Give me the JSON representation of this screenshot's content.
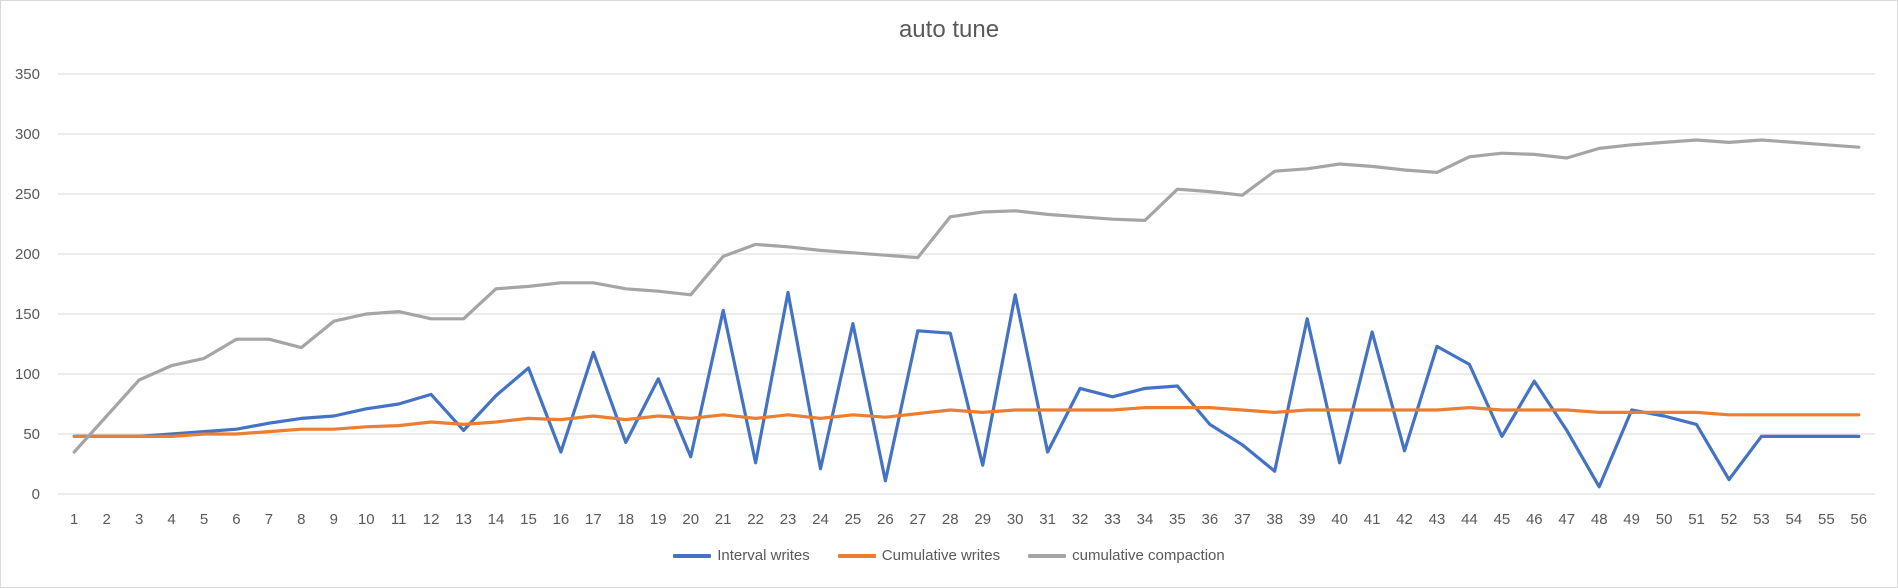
{
  "chart_data": {
    "type": "line",
    "title": "auto tune",
    "xlabel": "",
    "ylabel": "",
    "ylim": [
      0,
      350
    ],
    "yticks": [
      0,
      50,
      100,
      150,
      200,
      250,
      300,
      350
    ],
    "grid": true,
    "legend": "bottom",
    "categories": [
      "1",
      "2",
      "3",
      "4",
      "5",
      "6",
      "7",
      "8",
      "9",
      "10",
      "11",
      "12",
      "13",
      "14",
      "15",
      "16",
      "17",
      "18",
      "19",
      "20",
      "21",
      "22",
      "23",
      "24",
      "25",
      "26",
      "27",
      "28",
      "29",
      "30",
      "31",
      "32",
      "33",
      "34",
      "35",
      "36",
      "37",
      "38",
      "39",
      "40",
      "41",
      "42",
      "43",
      "44",
      "45",
      "46",
      "47",
      "48",
      "49",
      "50",
      "51",
      "52",
      "53",
      "54",
      "55",
      "56"
    ],
    "series": [
      {
        "name": "Interval writes",
        "color": "#4472c4",
        "values": [
          48,
          48,
          48,
          50,
          52,
          54,
          59,
          63,
          65,
          71,
          75,
          83,
          53,
          82,
          105,
          35,
          118,
          43,
          96,
          31,
          153,
          26,
          168,
          21,
          142,
          11,
          136,
          134,
          24,
          166,
          35,
          88,
          81,
          88,
          90,
          58,
          41,
          19,
          146,
          26,
          135,
          36,
          123,
          108,
          48,
          94,
          53,
          6,
          70,
          65,
          58,
          12,
          48,
          48,
          48,
          48
        ]
      },
      {
        "name": "Cumulative writes",
        "color": "#ed7d31",
        "values": [
          48,
          48,
          48,
          48,
          50,
          50,
          52,
          54,
          54,
          56,
          57,
          60,
          58,
          60,
          63,
          62,
          65,
          62,
          65,
          63,
          66,
          63,
          66,
          63,
          66,
          64,
          67,
          70,
          68,
          70,
          70,
          70,
          70,
          72,
          72,
          72,
          70,
          68,
          70,
          70,
          70,
          70,
          70,
          72,
          70,
          70,
          70,
          68,
          68,
          68,
          68,
          66,
          66,
          66,
          66,
          66
        ]
      },
      {
        "name": "cumulative compaction",
        "color": "#a5a5a5",
        "values": [
          35,
          65,
          95,
          107,
          113,
          129,
          129,
          122,
          144,
          150,
          152,
          146,
          146,
          171,
          173,
          176,
          176,
          171,
          169,
          166,
          198,
          208,
          206,
          203,
          201,
          199,
          197,
          231,
          235,
          236,
          233,
          231,
          229,
          228,
          254,
          252,
          249,
          269,
          271,
          275,
          273,
          270,
          268,
          281,
          284,
          283,
          280,
          288,
          291,
          293,
          295,
          293,
          295,
          293,
          291,
          289
        ]
      }
    ]
  }
}
